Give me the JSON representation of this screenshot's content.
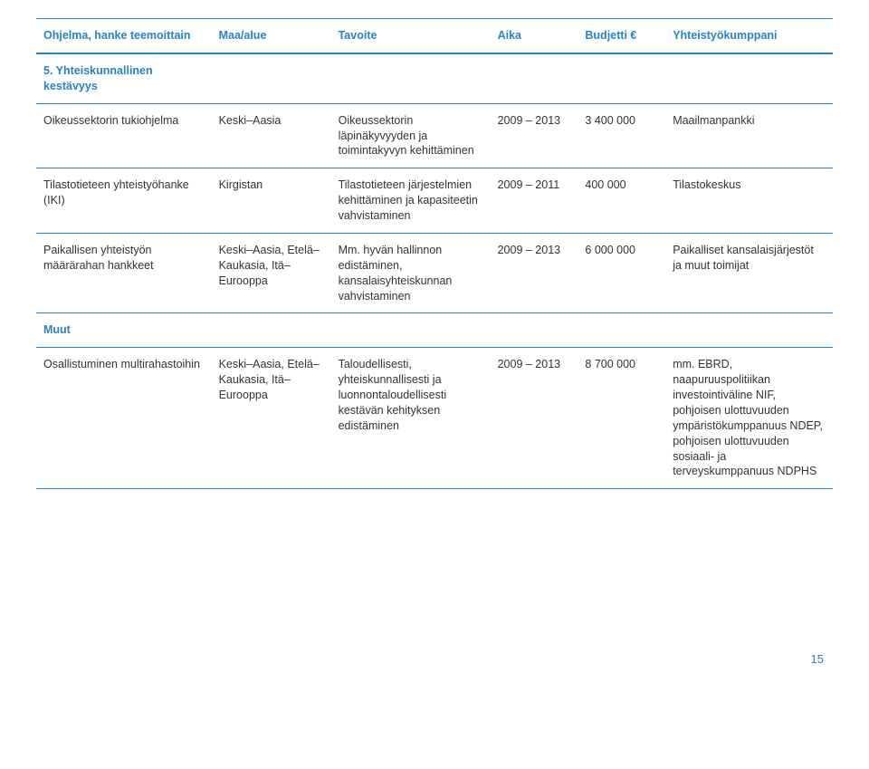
{
  "colors": {
    "header": "#2982c4",
    "border": "#2982c4",
    "body": "#333333",
    "pagenum": "#2982c4"
  },
  "fontsize": {
    "body": 12.5,
    "pagenum": 13
  },
  "columns": [
    "Ohjelma, hanke teemoittain",
    "Maa/alue",
    "Tavoite",
    "Aika",
    "Budjetti €",
    "Yhteistyökumppani"
  ],
  "section1": "5. Yhteiskunnallinen kestävyys",
  "rows1": [
    {
      "c1": "Oikeussektorin tukiohjelma",
      "c2": "Keski–Aasia",
      "c3": "Oikeussektorin läpinäkyvyyden ja toimintakyvyn kehittäminen",
      "c4": "2009 – 2013",
      "c5": "3 400 000",
      "c6": "Maailmanpankki"
    },
    {
      "c1": "Tilastotieteen yhteistyöhanke (IKI)",
      "c2": "Kirgistan",
      "c3": "Tilastotieteen järjestelmien kehittäminen ja kapasiteetin vahvistaminen",
      "c4": "2009 – 2011",
      "c5": "400 000",
      "c6": "Tilastokeskus"
    },
    {
      "c1": "Paikallisen yhteistyön määrärahan hankkeet",
      "c2": "Keski–Aasia, Etelä–Kaukasia, Itä–Eurooppa",
      "c3": "Mm. hyvän hallinnon edistäminen, kansalaisyhteiskunnan vahvistaminen",
      "c4": "2009 – 2013",
      "c5": "6 000 000",
      "c6": "Paikalliset kansalaisjärjestöt ja muut toimijat"
    }
  ],
  "section2": "Muut",
  "rows2": [
    {
      "c1": "Osallistuminen multirahastoihin",
      "c2": "Keski–Aasia, Etelä–Kaukasia, Itä–Eurooppa",
      "c3": "Taloudellisesti, yhteiskunnallisesti ja luonnontaloudellisesti kestävän kehityksen edistäminen",
      "c4": "2009 – 2013",
      "c5": "8 700 000",
      "c6": "mm. EBRD, naapuruuspolitiikan investointiväline NIF, pohjoisen ulottuvuuden ympäristökumppanuus NDEP, pohjoisen ulottuvuuden sosiaali- ja terveyskumppanuus NDPHS"
    }
  ],
  "pageNumber": "15"
}
